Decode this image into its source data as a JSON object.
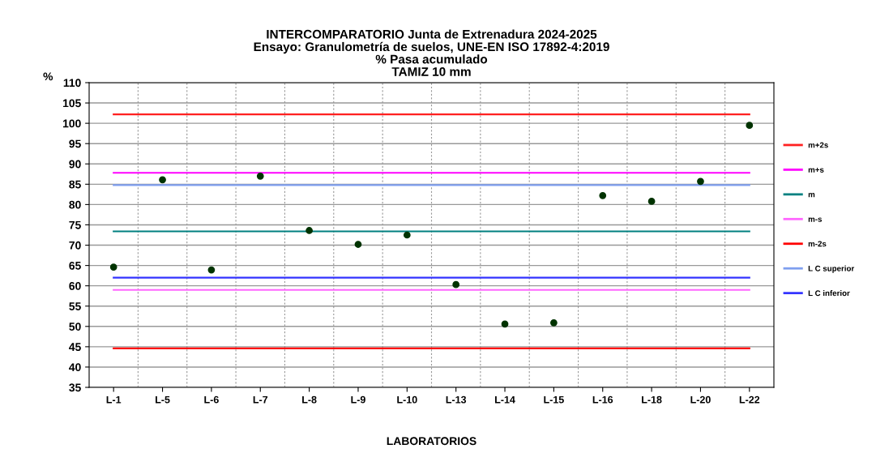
{
  "chart_data": {
    "type": "scatter",
    "title": "INTERCOMPARATORIO Junta de Extrenadura 2024-2025\nEnsayo: Granulometría de suelos, UNE-EN ISO 17892-4:2019\n% Pasa acumulado\nTAMIZ 10 mm",
    "xlabel": "LABORATORIOS",
    "ylabel": "%",
    "categories": [
      "L-1",
      "L-5",
      "L-6",
      "L-7",
      "L-8",
      "L-9",
      "L-10",
      "L-13",
      "L-14",
      "L-15",
      "L-16",
      "L-18",
      "L-20",
      "L-22"
    ],
    "series": [
      {
        "color": "#003300",
        "marker": "circle",
        "values": [
          64.6,
          86.1,
          63.9,
          87.0,
          73.6,
          70.2,
          72.5,
          60.3,
          50.6,
          50.9,
          82.2,
          80.8,
          85.7,
          99.5
        ]
      },
      {
        "type": "line",
        "name": "m+2s",
        "color": "#ff2020",
        "values": [
          102.2,
          102.2,
          102.2,
          102.2,
          102.2,
          102.2,
          102.2,
          102.2,
          102.2,
          102.2,
          102.2,
          102.2,
          102.2,
          102.2
        ]
      },
      {
        "type": "line",
        "name": "m+s",
        "color": "#ff00ff",
        "values": [
          87.8,
          87.8,
          87.8,
          87.8,
          87.8,
          87.8,
          87.8,
          87.8,
          87.8,
          87.8,
          87.8,
          87.8,
          87.8,
          87.8
        ]
      },
      {
        "type": "line",
        "name": "m",
        "color": "#008080",
        "values": [
          73.4,
          73.4,
          73.4,
          73.4,
          73.4,
          73.4,
          73.4,
          73.4,
          73.4,
          73.4,
          73.4,
          73.4,
          73.4,
          73.4
        ]
      },
      {
        "type": "line",
        "name": "m-s",
        "color": "#ff66ff",
        "values": [
          59.0,
          59.0,
          59.0,
          59.0,
          59.0,
          59.0,
          59.0,
          59.0,
          59.0,
          59.0,
          59.0,
          59.0,
          59.0,
          59.0
        ]
      },
      {
        "type": "line",
        "name": "m-2s",
        "color": "#ff0000",
        "values": [
          44.6,
          44.6,
          44.6,
          44.6,
          44.6,
          44.6,
          44.6,
          44.6,
          44.6,
          44.6,
          44.6,
          44.6,
          44.6,
          44.6
        ]
      },
      {
        "type": "line",
        "name": "L C superior",
        "color": "#7f9fef",
        "values": [
          84.8,
          84.8,
          84.8,
          84.8,
          84.8,
          84.8,
          84.8,
          84.8,
          84.8,
          84.8,
          84.8,
          84.8,
          84.8,
          84.8
        ]
      },
      {
        "type": "line",
        "name": "L C inferior",
        "color": "#3333ff",
        "values": [
          62.0,
          62.0,
          62.0,
          62.0,
          62.0,
          62.0,
          62.0,
          62.0,
          62.0,
          62.0,
          62.0,
          62.0,
          62.0,
          62.0
        ]
      }
    ],
    "ylim": [
      35,
      110
    ],
    "yticks": [
      35,
      40,
      45,
      50,
      55,
      60,
      65,
      70,
      75,
      80,
      85,
      90,
      95,
      100,
      105,
      110
    ],
    "grid": true,
    "legend": "right"
  }
}
